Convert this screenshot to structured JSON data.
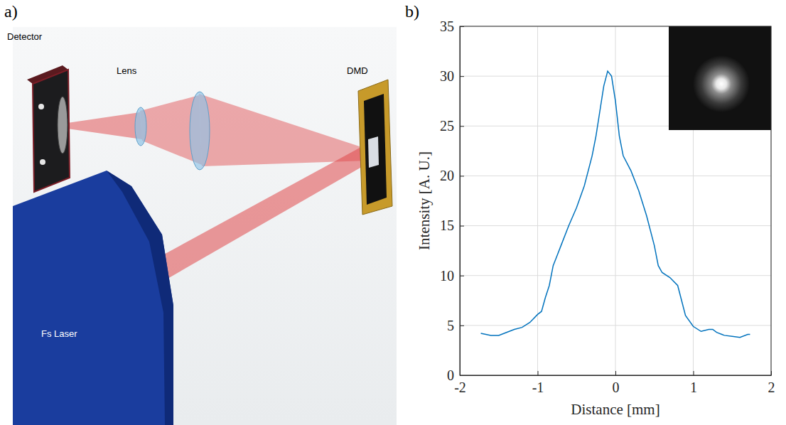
{
  "diagram": {
    "panel_label": "a)",
    "labels": {
      "detector": "Detector",
      "lens": "Lens",
      "dmd": "DMD",
      "laser": "Fs Laser"
    }
  },
  "chart_data": {
    "type": "line",
    "panel_label": "b)",
    "x_label": "Distance [mm]",
    "y_label": "Intensity [A. U.]",
    "x": [
      -1.73,
      -1.6,
      -1.5,
      -1.4,
      -1.3,
      -1.2,
      -1.1,
      -1.0,
      -0.95,
      -0.9,
      -0.85,
      -0.8,
      -0.75,
      -0.7,
      -0.6,
      -0.5,
      -0.4,
      -0.3,
      -0.25,
      -0.2,
      -0.15,
      -0.1,
      -0.05,
      0.0,
      0.05,
      0.1,
      0.2,
      0.3,
      0.4,
      0.5,
      0.55,
      0.6,
      0.7,
      0.8,
      0.85,
      0.9,
      1.0,
      1.1,
      1.2,
      1.25,
      1.3,
      1.4,
      1.5,
      1.6,
      1.7,
      1.73
    ],
    "values": [
      4.2,
      4.0,
      4.0,
      4.3,
      4.6,
      4.8,
      5.3,
      6.1,
      6.4,
      7.8,
      9.0,
      11.0,
      12.0,
      13.0,
      15.0,
      16.8,
      19.0,
      22.0,
      24.0,
      26.5,
      29.0,
      30.5,
      30.0,
      27.5,
      24.0,
      22.0,
      20.5,
      18.5,
      16.0,
      13.0,
      11.0,
      10.3,
      9.8,
      9.0,
      7.5,
      6.0,
      4.9,
      4.4,
      4.6,
      4.6,
      4.3,
      4.0,
      3.9,
      3.8,
      4.1,
      4.1
    ],
    "color": "#0072bd",
    "xlim": [
      -2,
      2
    ],
    "xticks": [
      -2,
      -1,
      0,
      1,
      2
    ],
    "ylim": [
      0,
      35
    ],
    "yticks": [
      0,
      5,
      10,
      15,
      20,
      25,
      30,
      35
    ],
    "grid": true
  }
}
